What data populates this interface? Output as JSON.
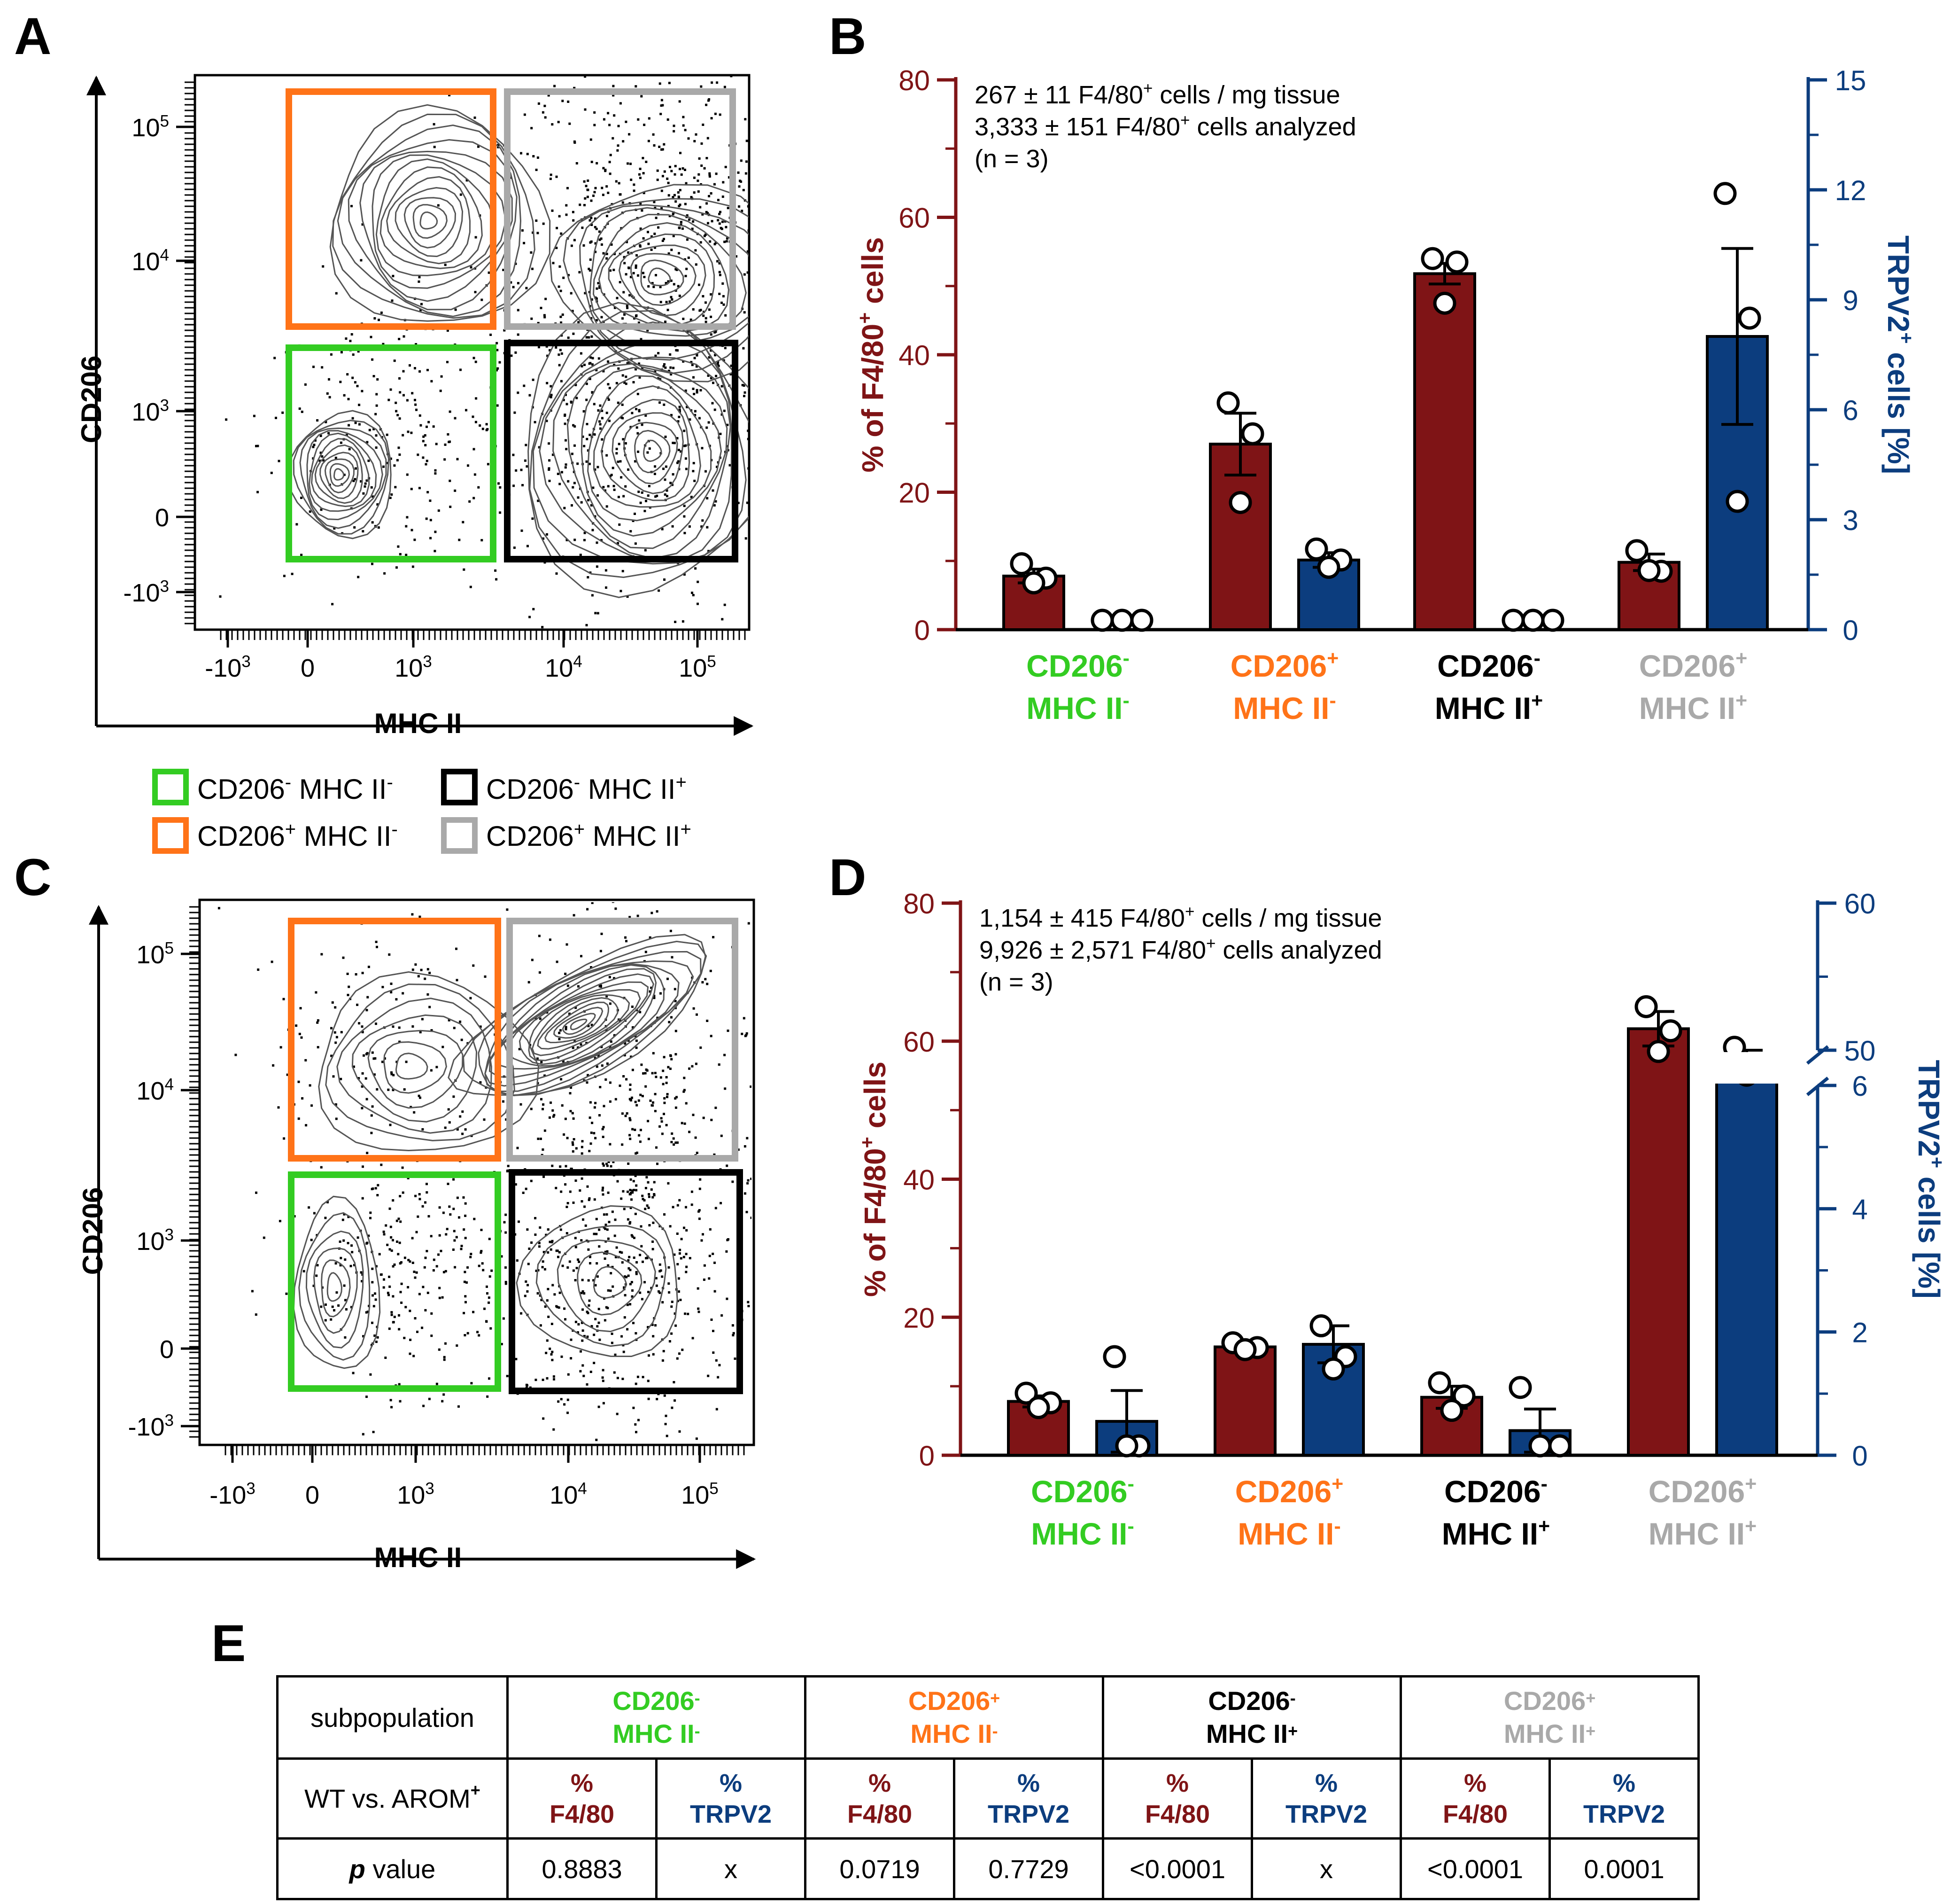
{
  "colors": {
    "green": "#33cc22",
    "orange": "#ff7318",
    "gray": "#a9a9a9",
    "black": "#000000",
    "f480_bar": "#7f1416",
    "trpv_bar": "#0c3d7e"
  },
  "panels": {
    "A": {
      "label": "A",
      "x_axis": "MHC II",
      "y_axis": "CD206",
      "x_ticks": [
        "-10",
        "0",
        "10",
        "10",
        "10"
      ],
      "x_tick_exp": [
        "3",
        "",
        "3",
        "4",
        "5"
      ],
      "y_ticks": [
        "10",
        "10",
        "10",
        "0",
        "-10"
      ],
      "y_tick_exp": [
        "5",
        "4",
        "3",
        "",
        "3"
      ]
    },
    "B": {
      "label": "B"
    },
    "C": {
      "label": "C",
      "x_axis": "MHC II",
      "y_axis": "CD206",
      "x_ticks": [
        "-10",
        "0",
        "10",
        "10",
        "10"
      ],
      "x_tick_exp": [
        "3",
        "",
        "3",
        "4",
        "5"
      ],
      "y_ticks": [
        "10",
        "10",
        "10",
        "0",
        "-10"
      ],
      "y_tick_exp": [
        "5",
        "4",
        "3",
        "",
        "3"
      ]
    },
    "D": {
      "label": "D"
    },
    "E": {
      "label": "E"
    }
  },
  "legend": [
    {
      "name": "CD206",
      "s1": "-",
      "mid": " MHC II",
      "s2": "-",
      "color": "#33cc22"
    },
    {
      "name": "CD206",
      "s1": "-",
      "mid": " MHC II",
      "s2": "+",
      "color": "#000000"
    },
    {
      "name": "CD206",
      "s1": "+",
      "mid": " MHC II",
      "s2": "-",
      "color": "#ff7318"
    },
    {
      "name": "CD206",
      "s1": "+",
      "mid": " MHC II",
      "s2": "+",
      "color": "#a9a9a9"
    }
  ],
  "chart_data": [
    {
      "panel": "B",
      "type": "bar",
      "annotation": [
        {
          "pre": "267 ± 11 F4/80",
          "sup": "+",
          "post": " cells / mg tissue"
        },
        {
          "pre": "3,333 ± 151 F4/80",
          "sup": "+",
          "post": " cells analyzed"
        },
        {
          "pre": "(n = 3)",
          "sup": "",
          "post": ""
        }
      ],
      "ylabel_left": {
        "pre": "% of F4/80",
        "sup": "+",
        "post": " cells"
      },
      "ylabel_right": {
        "pre": "TRPV2",
        "sup": "+",
        "post": " cells [%]"
      },
      "left_axis": {
        "range": [
          0,
          80
        ],
        "ticks": [
          "0",
          "20",
          "40",
          "60",
          "80"
        ]
      },
      "right_axis": {
        "range": [
          0,
          15
        ],
        "ticks": [
          "0",
          "3",
          "6",
          "9",
          "12",
          "15"
        ]
      },
      "categories": [
        {
          "l1": "CD206",
          "s1": "-",
          "l2": "MHC II",
          "s2": "-",
          "color": "#33cc22"
        },
        {
          "l1": "CD206",
          "s1": "+",
          "l2": "MHC II",
          "s2": "-",
          "color": "#ff7318"
        },
        {
          "l1": "CD206",
          "s1": "-",
          "l2": "MHC II",
          "s2": "+",
          "color": "#000000"
        },
        {
          "l1": "CD206",
          "s1": "+",
          "l2": "MHC II",
          "s2": "+",
          "color": "#a9a9a9"
        }
      ],
      "series": [
        {
          "name": "% of F4/80+ cells",
          "axis": "left",
          "values": [
            7.8,
            27.0,
            51.8,
            9.8
          ],
          "errors": [
            1.0,
            4.5,
            1.5,
            1.2
          ],
          "points": [
            [
              9.6,
              7.5,
              6.8
            ],
            [
              33.0,
              28.5,
              18.5
            ],
            [
              54.0,
              53.5,
              47.5
            ],
            [
              11.5,
              8.5,
              8.6
            ]
          ]
        },
        {
          "name": "TRPV2+ cells [%]",
          "axis": "right",
          "values": [
            0.0,
            1.9,
            0.0,
            8.0
          ],
          "errors": [
            0.0,
            0.2,
            0.0,
            2.4
          ],
          "points": [
            [
              0.0,
              0.0,
              0.0
            ],
            [
              2.2,
              1.9,
              1.7
            ],
            [
              0.1,
              0.0,
              0.0
            ],
            [
              11.9,
              8.5,
              3.5
            ]
          ]
        }
      ]
    },
    {
      "panel": "D",
      "type": "bar",
      "annotation": [
        {
          "pre": "1,154 ± 415 F4/80",
          "sup": "+",
          "post": " cells / mg tissue"
        },
        {
          "pre": "9,926 ± 2,571 F4/80",
          "sup": "+",
          "post": " cells analyzed"
        },
        {
          "pre": "(n = 3)",
          "sup": "",
          "post": ""
        }
      ],
      "ylabel_left": {
        "pre": "% of F4/80",
        "sup": "+",
        "post": " cells"
      },
      "ylabel_right": {
        "pre": "TRPV2",
        "sup": "+",
        "post": " cells [%]"
      },
      "left_axis": {
        "range": [
          0,
          80
        ],
        "ticks": [
          "0",
          "20",
          "40",
          "60",
          "80"
        ]
      },
      "right_axis": {
        "broken": true,
        "lower_range": [
          0,
          6
        ],
        "upper_range": [
          50,
          60
        ],
        "ticks": [
          "0",
          "2",
          "4",
          "6",
          "50",
          "60"
        ]
      },
      "categories": [
        {
          "l1": "CD206",
          "s1": "-",
          "l2": "MHC II",
          "s2": "-",
          "color": "#33cc22"
        },
        {
          "l1": "CD206",
          "s1": "+",
          "l2": "MHC II",
          "s2": "-",
          "color": "#ff7318"
        },
        {
          "l1": "CD206",
          "s1": "-",
          "l2": "MHC II",
          "s2": "+",
          "color": "#000000"
        },
        {
          "l1": "CD206",
          "s1": "+",
          "l2": "MHC II",
          "s2": "+",
          "color": "#a9a9a9"
        }
      ],
      "series": [
        {
          "name": "% of F4/80+ cells",
          "axis": "left",
          "values": [
            7.8,
            15.7,
            8.4,
            61.8
          ],
          "errors": [
            0.8,
            0.7,
            1.6,
            2.5
          ],
          "points": [
            [
              9.0,
              7.6,
              6.9
            ],
            [
              16.3,
              15.6,
              15.3
            ],
            [
              10.5,
              8.6,
              6.5
            ],
            [
              65.0,
              61.5,
              58.5
            ]
          ]
        },
        {
          "name": "TRPV2+ cells [%]",
          "axis": "right",
          "values": [
            0.55,
            1.8,
            0.4,
            49.0
          ],
          "errors": [
            0.5,
            0.3,
            0.35,
            1.0
          ],
          "points": [
            [
              1.6,
              0.0,
              0.0
            ],
            [
              2.1,
              1.6,
              1.4
            ],
            [
              1.1,
              0.0,
              0.0
            ],
            [
              50.2,
              48.8,
              48.3
            ]
          ]
        }
      ]
    }
  ],
  "table": {
    "row1_label": "subpopulation",
    "groups": [
      {
        "l1": "CD206",
        "s1": "-",
        "l2": "MHC II",
        "s2": "-",
        "color": "#33cc22"
      },
      {
        "l1": "CD206",
        "s1": "+",
        "l2": "MHC II",
        "s2": "-",
        "color": "#ff7318"
      },
      {
        "l1": "CD206",
        "s1": "-",
        "l2": "MHC II",
        "s2": "+",
        "color": "#000000"
      },
      {
        "l1": "CD206",
        "s1": "+",
        "l2": "MHC II",
        "s2": "+",
        "color": "#a9a9a9"
      }
    ],
    "row2_label": "WT vs. AROM",
    "row2_sup": "+",
    "pct": "%",
    "sub_f480": "F4/80",
    "sub_trpv2": "TRPV2",
    "row3_label_p": "p",
    "row3_label_rest": " value",
    "values": [
      "0.8883",
      "x",
      "0.0719",
      "0.7729",
      "<0.0001",
      "x",
      "<0.0001",
      "0.0001"
    ]
  }
}
